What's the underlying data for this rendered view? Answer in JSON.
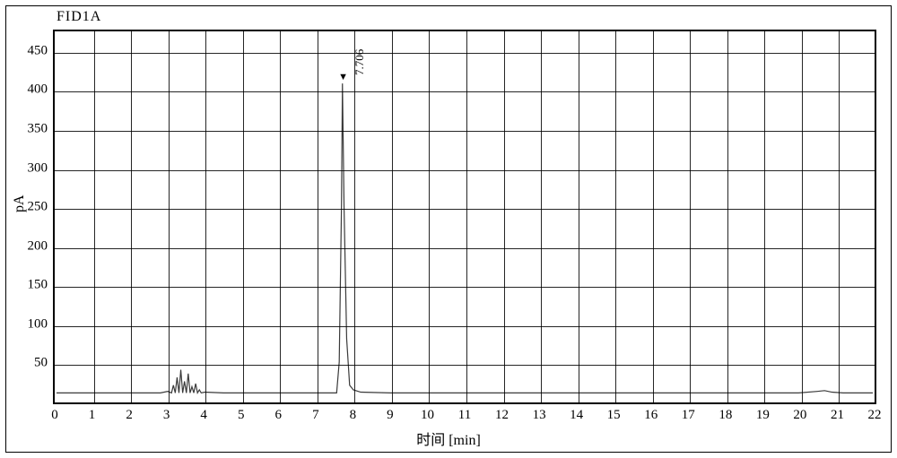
{
  "chart": {
    "type": "line",
    "title": "FID1A",
    "title_fontsize": 16,
    "xlabel": "时间 [min]",
    "ylabel": "pA",
    "label_fontsize": 16,
    "tick_fontsize": 15,
    "background_color": "#ffffff",
    "frame_border_color": "#000000",
    "plot_border_color": "#000000",
    "grid_color": "#000000",
    "trace_color": "#3a3a3a",
    "trace_width": 1.2,
    "xlim": [
      0,
      22
    ],
    "ylim": [
      0,
      475
    ],
    "xtick_step": 1,
    "ytick_step": 50,
    "ytick_start": 50,
    "ytick_end": 450,
    "xtick_labels": [
      "0",
      "1",
      "2",
      "3",
      "4",
      "5",
      "6",
      "7",
      "8",
      "9",
      "10",
      "11",
      "12",
      "13",
      "14",
      "15",
      "16",
      "17",
      "18",
      "19",
      "20",
      "21",
      "22"
    ],
    "ytick_labels": [
      "50",
      "100",
      "150",
      "200",
      "250",
      "300",
      "350",
      "400",
      "450"
    ],
    "peak": {
      "retention_time": 7.706,
      "apex_pA": 410,
      "label": "7.706",
      "marker": "▼"
    },
    "baseline_pA": 10,
    "solvent_front": {
      "start_min": 3.0,
      "end_min": 3.9
    },
    "trace_points": [
      [
        0.0,
        10
      ],
      [
        1.0,
        10
      ],
      [
        2.0,
        10
      ],
      [
        2.8,
        10
      ],
      [
        3.0,
        12
      ],
      [
        3.1,
        10
      ],
      [
        3.15,
        20
      ],
      [
        3.2,
        10
      ],
      [
        3.25,
        30
      ],
      [
        3.3,
        10
      ],
      [
        3.35,
        40
      ],
      [
        3.4,
        10
      ],
      [
        3.45,
        25
      ],
      [
        3.5,
        10
      ],
      [
        3.55,
        35
      ],
      [
        3.6,
        10
      ],
      [
        3.65,
        18
      ],
      [
        3.7,
        10
      ],
      [
        3.75,
        22
      ],
      [
        3.8,
        10
      ],
      [
        3.85,
        14
      ],
      [
        3.9,
        10
      ],
      [
        4.0,
        11
      ],
      [
        4.5,
        10
      ],
      [
        5.0,
        10
      ],
      [
        6.0,
        10
      ],
      [
        7.0,
        10
      ],
      [
        7.55,
        10
      ],
      [
        7.62,
        50
      ],
      [
        7.68,
        250
      ],
      [
        7.706,
        410
      ],
      [
        7.75,
        250
      ],
      [
        7.82,
        80
      ],
      [
        7.9,
        20
      ],
      [
        8.0,
        14
      ],
      [
        8.2,
        11
      ],
      [
        9.0,
        10
      ],
      [
        10.0,
        10
      ],
      [
        12.0,
        10
      ],
      [
        14.0,
        10
      ],
      [
        16.0,
        10
      ],
      [
        18.0,
        10
      ],
      [
        20.0,
        10
      ],
      [
        20.5,
        12
      ],
      [
        20.7,
        13
      ],
      [
        20.9,
        11
      ],
      [
        21.2,
        10
      ],
      [
        22.0,
        10
      ]
    ]
  }
}
